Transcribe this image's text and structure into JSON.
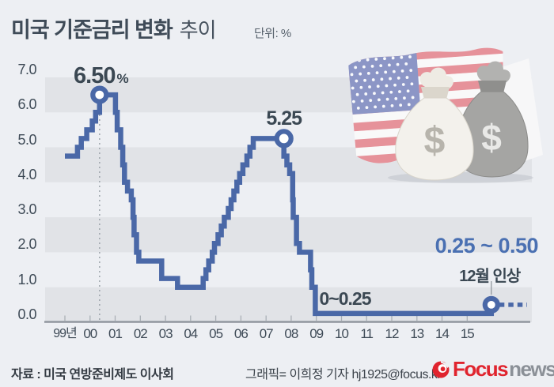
{
  "header": {
    "title_bold": "미국 기준금리 변화",
    "title_light": "추이",
    "unit_label": "단위: %"
  },
  "chart_data": {
    "type": "line",
    "style": "step",
    "title": "미국 기준금리 변화 추이",
    "unit": "%",
    "y_axis": {
      "ticks": [
        "7.0",
        "6.0",
        "5.0",
        "4.0",
        "3.0",
        "2.0",
        "1.0",
        "0.0"
      ],
      "range": [
        0,
        7
      ],
      "grid": "alternating horizontal gray bands between integer gridlines"
    },
    "x_axis": {
      "ticks": [
        "99년",
        "00",
        "01",
        "02",
        "03",
        "04",
        "05",
        "06",
        "07",
        "08",
        "09",
        "10",
        "11",
        "12",
        "13",
        "14",
        "15"
      ],
      "range_years": [
        1999,
        2017
      ]
    },
    "series": [
      {
        "name": "미국 기준금리",
        "color": "#4a68a7",
        "points": [
          {
            "date": "1999-01",
            "rate": 4.75,
            "year": 1999.0
          },
          {
            "date": "1999-06",
            "rate": 5.0,
            "year": 1999.5
          },
          {
            "date": "1999-08",
            "rate": 5.25,
            "year": 1999.65
          },
          {
            "date": "1999-11",
            "rate": 5.5,
            "year": 1999.87
          },
          {
            "date": "2000-02",
            "rate": 5.75,
            "year": 2000.09
          },
          {
            "date": "2000-03",
            "rate": 6.0,
            "year": 2000.22
          },
          {
            "date": "2000-05",
            "rate": 6.5,
            "year": 2000.38
          },
          {
            "date": "2001-01",
            "rate": 6.0,
            "year": 2001.01
          },
          {
            "date": "2001-01",
            "rate": 5.5,
            "year": 2001.08
          },
          {
            "date": "2001-03",
            "rate": 5.0,
            "year": 2001.22
          },
          {
            "date": "2001-04",
            "rate": 4.5,
            "year": 2001.3
          },
          {
            "date": "2001-05",
            "rate": 4.0,
            "year": 2001.37
          },
          {
            "date": "2001-06",
            "rate": 3.75,
            "year": 2001.49
          },
          {
            "date": "2001-08",
            "rate": 3.5,
            "year": 2001.64
          },
          {
            "date": "2001-09",
            "rate": 3.0,
            "year": 2001.71
          },
          {
            "date": "2001-10",
            "rate": 2.5,
            "year": 2001.75
          },
          {
            "date": "2001-11",
            "rate": 2.0,
            "year": 2001.85
          },
          {
            "date": "2001-12",
            "rate": 1.75,
            "year": 2001.94
          },
          {
            "date": "2002-11",
            "rate": 1.25,
            "year": 2002.85
          },
          {
            "date": "2003-06",
            "rate": 1.0,
            "year": 2003.48
          },
          {
            "date": "2004-06",
            "rate": 1.25,
            "year": 2004.5
          },
          {
            "date": "2004-08",
            "rate": 1.5,
            "year": 2004.61
          },
          {
            "date": "2004-09",
            "rate": 1.75,
            "year": 2004.72
          },
          {
            "date": "2004-11",
            "rate": 2.0,
            "year": 2004.86
          },
          {
            "date": "2004-12",
            "rate": 2.25,
            "year": 2004.95
          },
          {
            "date": "2005-02",
            "rate": 2.5,
            "year": 2005.09
          },
          {
            "date": "2005-03",
            "rate": 2.75,
            "year": 2005.22
          },
          {
            "date": "2005-05",
            "rate": 3.0,
            "year": 2005.34
          },
          {
            "date": "2005-06",
            "rate": 3.25,
            "year": 2005.5
          },
          {
            "date": "2005-08",
            "rate": 3.5,
            "year": 2005.61
          },
          {
            "date": "2005-09",
            "rate": 3.75,
            "year": 2005.72
          },
          {
            "date": "2005-11",
            "rate": 4.0,
            "year": 2005.84
          },
          {
            "date": "2005-12",
            "rate": 4.25,
            "year": 2005.95
          },
          {
            "date": "2006-01",
            "rate": 4.5,
            "year": 2006.08
          },
          {
            "date": "2006-03",
            "rate": 4.75,
            "year": 2006.24
          },
          {
            "date": "2006-05",
            "rate": 5.0,
            "year": 2006.36
          },
          {
            "date": "2006-06",
            "rate": 5.25,
            "year": 2006.49
          },
          {
            "date": "2007-09",
            "rate": 4.75,
            "year": 2007.71
          },
          {
            "date": "2007-10",
            "rate": 4.5,
            "year": 2007.83
          },
          {
            "date": "2007-12",
            "rate": 4.25,
            "year": 2007.94
          },
          {
            "date": "2008-01",
            "rate": 3.5,
            "year": 2008.06
          },
          {
            "date": "2008-01",
            "rate": 3.0,
            "year": 2008.08
          },
          {
            "date": "2008-03",
            "rate": 2.25,
            "year": 2008.21
          },
          {
            "date": "2008-04",
            "rate": 2.0,
            "year": 2008.33
          },
          {
            "date": "2008-10",
            "rate": 1.5,
            "year": 2008.77
          },
          {
            "date": "2008-10",
            "rate": 1.0,
            "year": 2008.82
          },
          {
            "date": "2008-12",
            "rate": "0~0.25",
            "plot": 0.25,
            "year": 2008.96
          },
          {
            "date": "2015-12",
            "rate": "0.25~0.50",
            "plot": 0.5,
            "year": 2015.96
          }
        ]
      }
    ],
    "markers": [
      {
        "label": "6.50",
        "suffix": "%",
        "date": "2000-05",
        "year": 2000.38,
        "value": 6.5
      },
      {
        "label": "5.25",
        "date": "2006-06",
        "year": 2007.71,
        "value": 5.25
      },
      {
        "label": "0.25 ~ 0.50",
        "note": "12월 인상",
        "date": "2015-12",
        "year": 2015.96,
        "value": 0.5
      }
    ],
    "flat_label": {
      "text": "0~0.25",
      "year": 2009.12,
      "value": 0.25
    },
    "legend": "none"
  },
  "footer": {
    "source": "자료 : 미국 연방준비제도 이사회",
    "credit": "그래픽= 이희정 기자 hj1925@focus.kr",
    "logo": {
      "brand": "Focus",
      "suffix": "news"
    }
  },
  "illustration": {
    "flag": "united-states-flag",
    "bags": [
      "white-money-bag",
      "gray-money-bag"
    ],
    "bag_symbol": "$"
  },
  "colors": {
    "background": "#edeff3",
    "band": "#e1e3e7",
    "line": "#4a68a7",
    "accent_blue": "#4a70b2",
    "dark_text": "#3b4853",
    "axis": "#8e949c",
    "logo_red": "#e0242e",
    "logo_gray": "#8b9097"
  }
}
